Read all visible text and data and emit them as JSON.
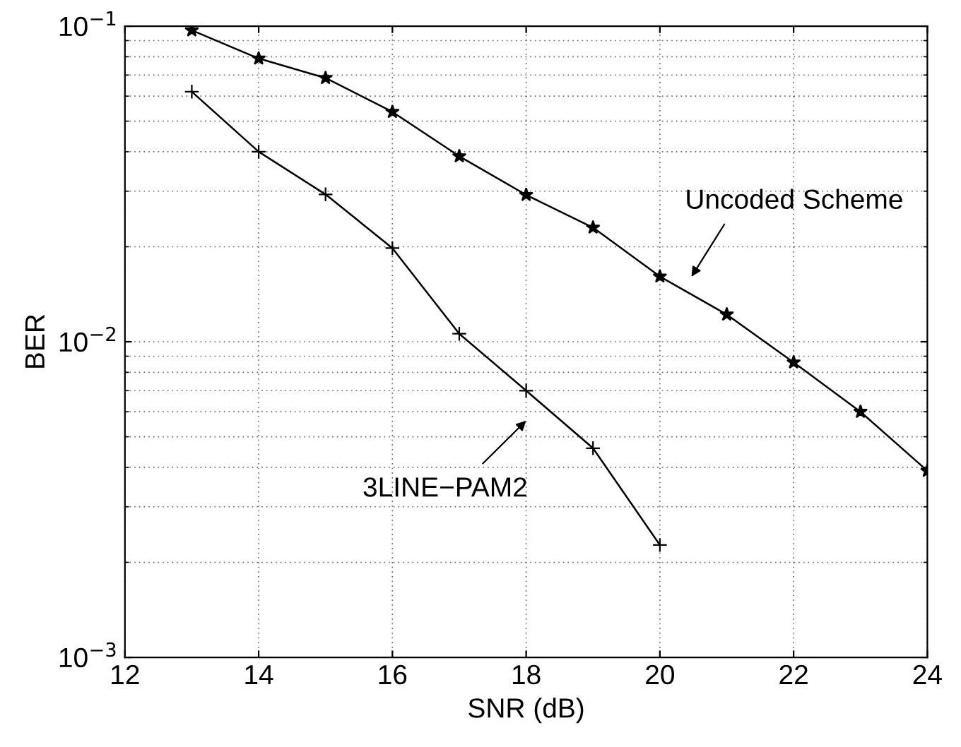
{
  "chart_data": {
    "type": "line",
    "xlabel": "SNR (dB)",
    "ylabel": "BER",
    "log": "y",
    "grid": true,
    "legend": false,
    "xlim": [
      12,
      24
    ],
    "xticks": [
      12,
      14,
      16,
      18,
      20,
      22,
      24
    ],
    "ylim": [
      0.001,
      0.1
    ],
    "yticks": [
      {
        "value": 0.001,
        "label": "10$^{−3}$"
      },
      {
        "value": 0.01,
        "label": "10$^{−2}$"
      },
      {
        "value": 0.1,
        "label": "10$^{−1}$"
      }
    ],
    "series": [
      {
        "color": "#000000",
        "marker": "star",
        "x": [
          13,
          14,
          15,
          16,
          17,
          18,
          19,
          20,
          21,
          22,
          23,
          24
        ],
        "values": [
          0.097,
          0.079,
          0.0685,
          0.0535,
          0.0387,
          0.0292,
          0.023,
          0.0161,
          0.0122,
          0.0086,
          0.006,
          0.0039
        ]
      },
      {
        "color": "#000000",
        "marker": "cross",
        "x": [
          13,
          14,
          15,
          16,
          17,
          18,
          19,
          20
        ],
        "values": [
          0.062,
          0.04,
          0.0293,
          0.0198,
          0.0106,
          0.007,
          0.0046,
          0.00227
        ]
      }
    ],
    "annotations": [
      "Uncoded Scheme",
      "3LINE−PAM2"
    ]
  }
}
